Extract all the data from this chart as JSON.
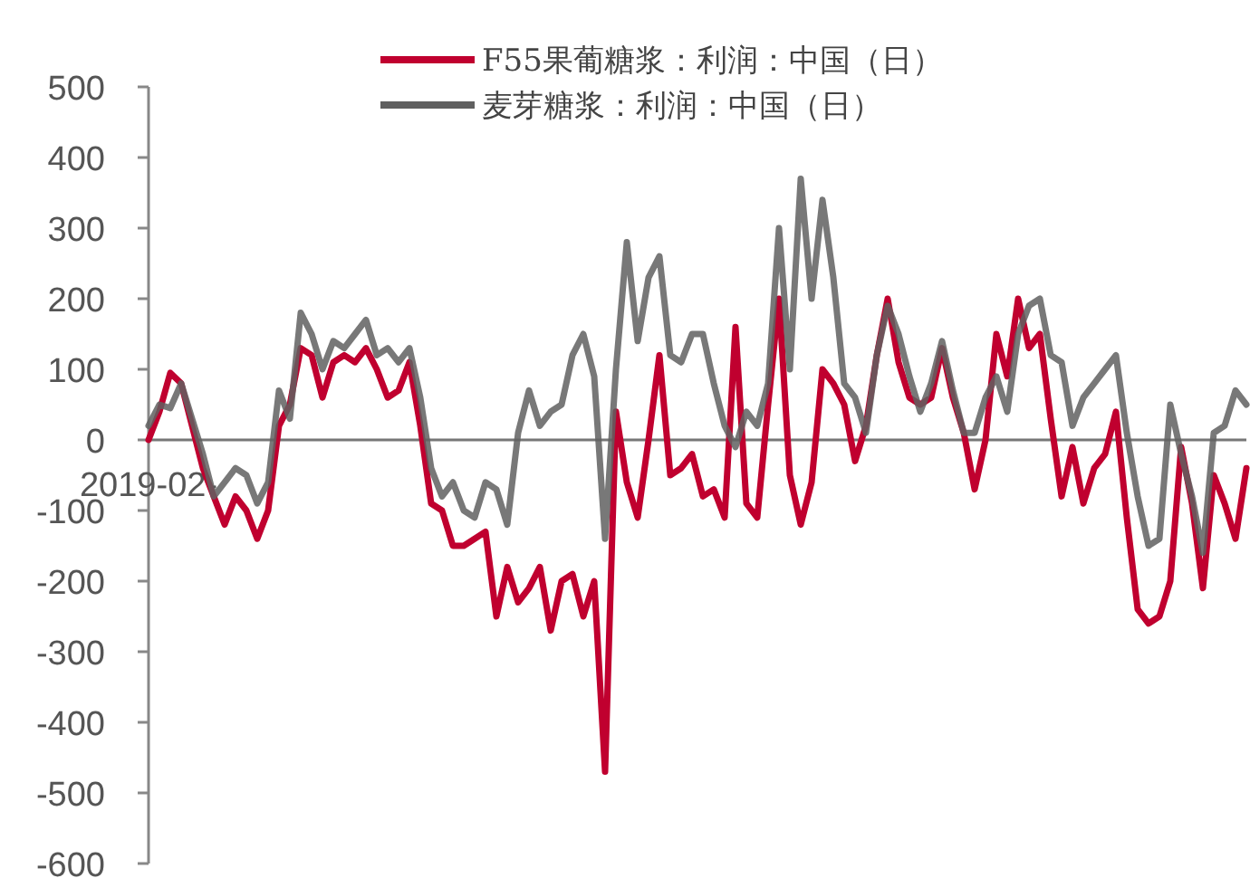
{
  "chart_data": {
    "type": "line",
    "categories": [
      "2019-02-",
      null,
      null,
      null,
      null,
      null,
      null,
      null,
      null,
      null,
      null,
      null,
      null,
      null,
      null,
      null,
      null,
      null,
      null,
      null,
      null,
      null,
      null,
      null,
      null,
      null,
      null,
      null,
      null,
      null,
      null,
      null,
      null,
      null,
      null,
      null,
      null,
      null,
      null,
      null,
      null,
      null,
      null,
      null,
      null,
      null,
      null,
      null,
      null,
      null,
      null,
      null,
      null,
      null,
      null,
      null,
      null,
      null,
      null,
      null,
      null,
      null,
      null,
      null,
      null,
      null,
      null,
      null,
      null,
      null,
      null,
      null,
      null,
      null,
      null,
      null,
      null,
      null,
      null,
      null,
      null,
      null,
      null,
      null,
      null,
      null,
      null,
      null,
      null,
      null,
      null,
      null,
      null,
      null,
      null,
      null,
      null,
      null,
      null,
      null,
      null,
      null
    ],
    "series": [
      {
        "name": "F55果葡糖浆：利润：中国（日）",
        "color": "#c0002f",
        "values": [
          0,
          40,
          95,
          80,
          20,
          -40,
          -80,
          -120,
          -80,
          -100,
          -140,
          -100,
          20,
          50,
          130,
          120,
          60,
          110,
          120,
          110,
          130,
          100,
          60,
          70,
          110,
          20,
          -90,
          -100,
          -150,
          -150,
          -140,
          -130,
          -250,
          -180,
          -230,
          -210,
          -180,
          -270,
          -200,
          -190,
          -250,
          -200,
          -470,
          40,
          -60,
          -110,
          0,
          120,
          -50,
          -40,
          -20,
          -80,
          -70,
          -110,
          160,
          -90,
          -110,
          50,
          200,
          -50,
          -120,
          -60,
          100,
          80,
          50,
          -30,
          20,
          120,
          200,
          110,
          60,
          50,
          60,
          130,
          60,
          10,
          -70,
          0,
          150,
          90,
          200,
          130,
          150,
          30,
          -80,
          -10,
          -90,
          -40,
          -20,
          40,
          -110,
          -240,
          -260,
          -250,
          -200,
          -10,
          -90,
          -210,
          -50,
          -90,
          -140,
          -40
        ]
      },
      {
        "name": "麦芽糖浆：利润：中国（日）",
        "color": "#606060",
        "values": [
          20,
          50,
          45,
          80,
          30,
          -20,
          -80,
          -60,
          -40,
          -50,
          -90,
          -60,
          70,
          30,
          180,
          150,
          100,
          140,
          130,
          150,
          170,
          120,
          130,
          110,
          130,
          60,
          -40,
          -80,
          -60,
          -100,
          -110,
          -60,
          -70,
          -120,
          10,
          70,
          20,
          40,
          50,
          120,
          150,
          90,
          -140,
          100,
          280,
          140,
          230,
          260,
          120,
          110,
          150,
          150,
          80,
          20,
          -10,
          40,
          20,
          80,
          300,
          100,
          370,
          200,
          340,
          230,
          80,
          60,
          10,
          120,
          190,
          150,
          90,
          40,
          80,
          140,
          70,
          10,
          10,
          60,
          90,
          40,
          150,
          190,
          200,
          120,
          110,
          20,
          60,
          80,
          100,
          120,
          10,
          -80,
          -150,
          -140,
          50,
          -20,
          -80,
          -160,
          10,
          20,
          70,
          50
        ]
      }
    ],
    "ylim": [
      -600,
      500
    ],
    "yticks": [
      -600,
      -500,
      -400,
      -300,
      -200,
      -100,
      0,
      100,
      200,
      300,
      400,
      500
    ],
    "legend": "top",
    "marker": "none",
    "line_style": "solid"
  }
}
